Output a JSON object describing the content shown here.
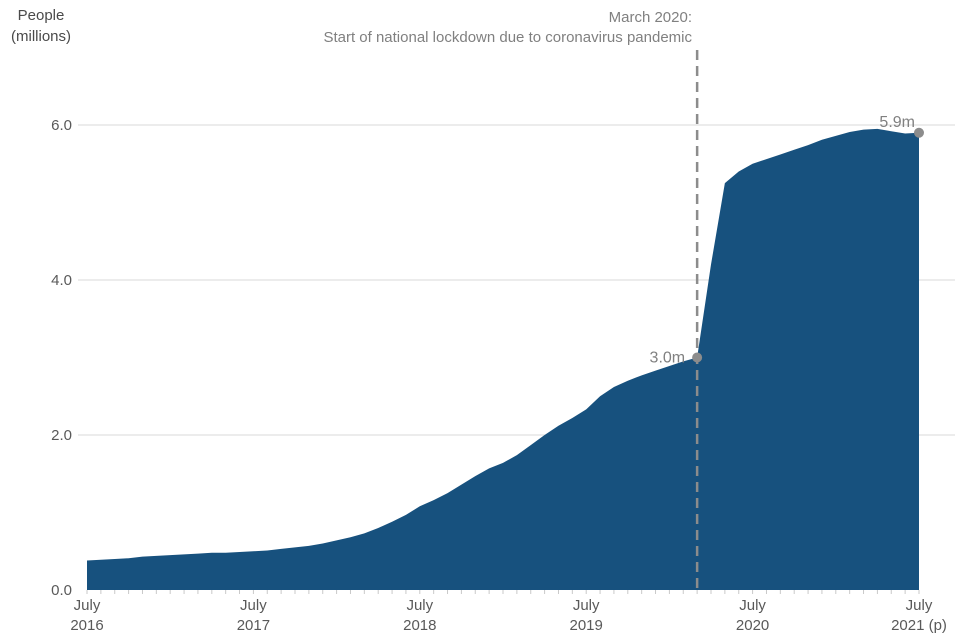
{
  "chart_data": {
    "type": "area",
    "title": "",
    "ylabel_lines": [
      "People",
      "(millions)"
    ],
    "series_color": "#17517e",
    "x": [
      "2016-07",
      "2016-08",
      "2016-09",
      "2016-10",
      "2016-11",
      "2016-12",
      "2017-01",
      "2017-02",
      "2017-03",
      "2017-04",
      "2017-05",
      "2017-06",
      "2017-07",
      "2017-08",
      "2017-09",
      "2017-10",
      "2017-11",
      "2017-12",
      "2018-01",
      "2018-02",
      "2018-03",
      "2018-04",
      "2018-05",
      "2018-06",
      "2018-07",
      "2018-08",
      "2018-09",
      "2018-10",
      "2018-11",
      "2018-12",
      "2019-01",
      "2019-02",
      "2019-03",
      "2019-04",
      "2019-05",
      "2019-06",
      "2019-07",
      "2019-08",
      "2019-09",
      "2019-10",
      "2019-11",
      "2019-12",
      "2020-01",
      "2020-02",
      "2020-03",
      "2020-04",
      "2020-05",
      "2020-06",
      "2020-07",
      "2020-08",
      "2020-09",
      "2020-10",
      "2020-11",
      "2020-12",
      "2021-01",
      "2021-02",
      "2021-03",
      "2021-04",
      "2021-05",
      "2021-06",
      "2021-07"
    ],
    "values": [
      0.38,
      0.39,
      0.4,
      0.41,
      0.43,
      0.44,
      0.45,
      0.46,
      0.47,
      0.48,
      0.48,
      0.49,
      0.5,
      0.51,
      0.53,
      0.55,
      0.57,
      0.6,
      0.64,
      0.68,
      0.73,
      0.8,
      0.88,
      0.97,
      1.08,
      1.16,
      1.25,
      1.36,
      1.47,
      1.57,
      1.64,
      1.74,
      1.87,
      2.0,
      2.12,
      2.22,
      2.33,
      2.5,
      2.62,
      2.7,
      2.77,
      2.83,
      2.89,
      2.95,
      3.0,
      4.2,
      5.25,
      5.4,
      5.5,
      5.56,
      5.62,
      5.68,
      5.74,
      5.81,
      5.86,
      5.91,
      5.94,
      5.95,
      5.92,
      5.89,
      5.9
    ],
    "ylim": [
      0,
      6.5
    ],
    "yticks": [
      {
        "value": 0.0,
        "label": "0.0"
      },
      {
        "value": 2.0,
        "label": "2.0"
      },
      {
        "value": 4.0,
        "label": "4.0"
      },
      {
        "value": 6.0,
        "label": "6.0"
      }
    ],
    "x_year_ticks": [
      {
        "month_index": 0,
        "line1": "July",
        "line2": "2016"
      },
      {
        "month_index": 12,
        "line1": "July",
        "line2": "2017"
      },
      {
        "month_index": 24,
        "line1": "July",
        "line2": "2018"
      },
      {
        "month_index": 36,
        "line1": "July",
        "line2": "2019"
      },
      {
        "month_index": 48,
        "line1": "July",
        "line2": "2020"
      },
      {
        "month_index": 60,
        "line1": "July",
        "line2": "2021 (p)"
      }
    ],
    "vline": {
      "month_index": 44,
      "note_line1": "March 2020:",
      "note_line2": "Start of national lockdown due to coronavirus pandemic"
    },
    "point_labels": [
      {
        "month_index": 44,
        "value": 3.0,
        "text": "3.0m"
      },
      {
        "month_index": 60,
        "value": 5.9,
        "text": "5.9m"
      }
    ],
    "grid": true,
    "legend": "none",
    "colors": {
      "area_fill": "#17517e",
      "gridline": "#d9d9d9",
      "tick_mark": "#c9c9c9",
      "tick_text": "#595959",
      "annotation": "#808080",
      "marker": "#8c8c8c",
      "vline": "#8c8c8c"
    }
  }
}
